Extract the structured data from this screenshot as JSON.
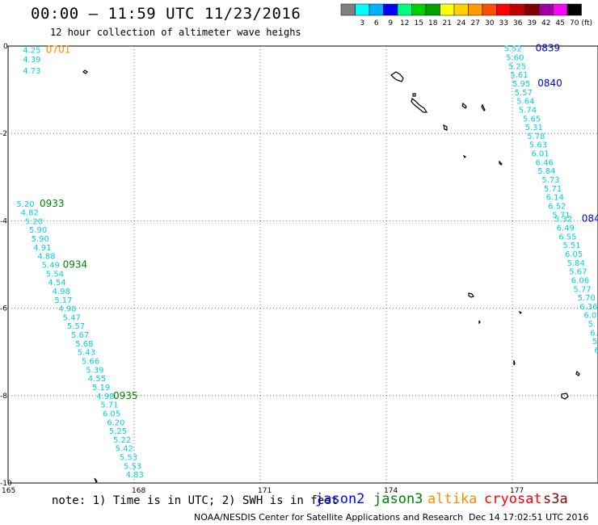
{
  "header": {
    "title": "00:00 – 11:59 UTC 11/23/2016",
    "subtitle": "12 hour collection of altimeter wave heighs"
  },
  "colorbar": {
    "unit": "(ft)",
    "bins": [
      {
        "label": "",
        "color": "#7f7f7f"
      },
      {
        "label": "3",
        "color": "#00ffff"
      },
      {
        "label": "6",
        "color": "#00b0ff"
      },
      {
        "label": "9",
        "color": "#0000ff"
      },
      {
        "label": "12",
        "color": "#00ff7f"
      },
      {
        "label": "15",
        "color": "#00d000"
      },
      {
        "label": "18",
        "color": "#00a000"
      },
      {
        "label": "21",
        "color": "#ffff00"
      },
      {
        "label": "24",
        "color": "#ffd000"
      },
      {
        "label": "27",
        "color": "#ff9900"
      },
      {
        "label": "30",
        "color": "#ff5000"
      },
      {
        "label": "33",
        "color": "#ff0000"
      },
      {
        "label": "36",
        "color": "#c00000"
      },
      {
        "label": "39",
        "color": "#800000"
      },
      {
        "label": "42",
        "color": "#a000a0"
      },
      {
        "label": "45",
        "color": "#ff00ff"
      },
      {
        "label": "70",
        "color": "#000000"
      }
    ]
  },
  "map": {
    "x_ticks": [
      "165",
      "168",
      "171",
      "174",
      "177"
    ],
    "y_ticks": [
      "0",
      "-2",
      "-4",
      "-6",
      "-8",
      "-10"
    ]
  },
  "chart_data": {
    "type": "scatter",
    "xlim": [
      165,
      180
    ],
    "ylim": [
      -10,
      0
    ],
    "passes": [
      {
        "label": "0701",
        "label_color": "#ff8c00",
        "value_color": "#00d0e0",
        "label_at": [
          165.9,
          -0.08
        ],
        "points": [
          [
            165.35,
            -0.08
          ],
          [
            165.35,
            -0.3
          ],
          [
            165.35,
            -0.55
          ]
        ],
        "values": [
          "4.25",
          "4.39",
          "4.73"
        ]
      },
      {
        "label": "0933",
        "label_color": "#008000",
        "value_color": "#00d0e0",
        "label_at": [
          165.75,
          -3.6
        ],
        "points": [
          [
            165.2,
            -3.6
          ],
          [
            165.3,
            -3.8
          ],
          [
            165.4,
            -4.0
          ],
          [
            165.5,
            -4.2
          ],
          [
            165.55,
            -4.4
          ],
          [
            165.6,
            -4.6
          ],
          [
            165.7,
            -4.8
          ],
          [
            165.8,
            -5.0
          ],
          [
            165.9,
            -5.2
          ],
          [
            165.95,
            -5.4
          ],
          [
            166.05,
            -5.6
          ],
          [
            166.1,
            -5.8
          ],
          [
            166.2,
            -6.0
          ],
          [
            166.3,
            -6.2
          ],
          [
            166.4,
            -6.4
          ],
          [
            166.5,
            -6.6
          ],
          [
            166.6,
            -6.8
          ],
          [
            166.65,
            -7.0
          ],
          [
            166.75,
            -7.2
          ],
          [
            166.85,
            -7.4
          ],
          [
            166.9,
            -7.6
          ],
          [
            167.0,
            -7.8
          ]
        ],
        "values": [
          "5.20",
          "4.82",
          "5.20",
          "5.90",
          "5.90",
          "4.91",
          "4.88",
          "5.49",
          "5.54",
          "4.54",
          "4.98",
          "5.17",
          "4.98",
          "5.47",
          "5.57",
          "5.67",
          "5.68",
          "5.43",
          "5.66",
          "5.39",
          "4.55",
          "5.19"
        ]
      },
      {
        "label": "0934",
        "label_color": "#008000",
        "value_color": "#00d0e0",
        "label_at": [
          166.3,
          -5.0
        ],
        "points": [],
        "values": []
      },
      {
        "label": "0935",
        "label_color": "#008000",
        "value_color": "#00d0e0",
        "label_at": [
          167.5,
          -8.0
        ],
        "points": [
          [
            167.1,
            -8.0
          ],
          [
            167.2,
            -8.2
          ],
          [
            167.25,
            -8.4
          ],
          [
            167.35,
            -8.6
          ],
          [
            167.4,
            -8.8
          ],
          [
            167.5,
            -9.0
          ],
          [
            167.55,
            -9.2
          ],
          [
            167.65,
            -9.4
          ],
          [
            167.75,
            -9.6
          ],
          [
            167.8,
            -9.8
          ]
        ],
        "values": [
          "4.98",
          "5.71",
          "6.05",
          "6.20",
          "5.25",
          "5.22",
          "5.42",
          "5.53",
          "5.53",
          "4.83"
        ]
      },
      {
        "label": "0839",
        "label_color": "#0000cc",
        "value_color": "#00d0e0",
        "label_at": [
          177.55,
          -0.05
        ],
        "points": [
          [
            176.8,
            -0.05
          ],
          [
            176.85,
            -0.25
          ],
          [
            176.9,
            -0.45
          ],
          [
            176.95,
            -0.65
          ],
          [
            177.0,
            -0.85
          ],
          [
            177.05,
            -1.05
          ],
          [
            177.1,
            -1.25
          ],
          [
            177.15,
            -1.45
          ],
          [
            177.25,
            -1.65
          ],
          [
            177.3,
            -1.85
          ],
          [
            177.35,
            -2.05
          ],
          [
            177.4,
            -2.25
          ],
          [
            177.45,
            -2.45
          ],
          [
            177.55,
            -2.65
          ],
          [
            177.6,
            -2.85
          ],
          [
            177.7,
            -3.05
          ],
          [
            177.75,
            -3.25
          ],
          [
            177.8,
            -3.45
          ],
          [
            177.85,
            -3.65
          ],
          [
            177.95,
            -3.85
          ]
        ],
        "values": [
          "5.52",
          "5.60",
          "5.25",
          "5.61",
          "5.95",
          "5.57",
          "5.64",
          "5.74",
          "5.65",
          "5.31",
          "5.78",
          "5.63",
          "6.01",
          "6.46",
          "5.84",
          "5.73",
          "5.71",
          "6.14",
          "6.52",
          "5.71"
        ]
      },
      {
        "label": "0840",
        "label_color": "#0000cc",
        "value_color": "#00d0e0",
        "label_at": [
          177.6,
          -0.85
        ],
        "points": [],
        "values": []
      },
      {
        "label": "084",
        "label_color": "#0000cc",
        "value_color": "#00d0e0",
        "label_at": [
          178.65,
          -3.95
        ],
        "points": [
          [
            178.0,
            -3.95
          ],
          [
            178.05,
            -4.15
          ],
          [
            178.1,
            -4.35
          ],
          [
            178.2,
            -4.55
          ],
          [
            178.25,
            -4.75
          ],
          [
            178.3,
            -4.95
          ],
          [
            178.35,
            -5.15
          ],
          [
            178.4,
            -5.35
          ],
          [
            178.45,
            -5.55
          ],
          [
            178.55,
            -5.75
          ],
          [
            178.6,
            -5.95
          ],
          [
            178.7,
            -6.15
          ],
          [
            178.8,
            -6.35
          ],
          [
            178.85,
            -6.55
          ],
          [
            178.9,
            -6.75
          ],
          [
            178.95,
            -6.95
          ]
        ],
        "values": [
          "5.32",
          "6.49",
          "6.55",
          "5.51",
          "6.05",
          "5.84",
          "5.67",
          "6.06",
          "5.77",
          "5.70",
          "6.36",
          "6.0",
          "5.",
          "6.",
          "5.",
          "6."
        ]
      }
    ]
  },
  "footer": {
    "note": "note: 1) Time is in UTC; 2) SWH is in feet",
    "satellites": [
      {
        "name": "jason2",
        "color": "#0000ff"
      },
      {
        "name": "jason3",
        "color": "#008000"
      },
      {
        "name": "altika",
        "color": "#ff8c00"
      },
      {
        "name": "cryosat",
        "color": "#ff0000"
      },
      {
        "name": "s3a",
        "color": "#8b0000"
      }
    ],
    "credit": "NOAA/NESDIS Center for Satellite Applications and Research",
    "generated": "Dec 14 17:02:51 UTC 2016"
  }
}
